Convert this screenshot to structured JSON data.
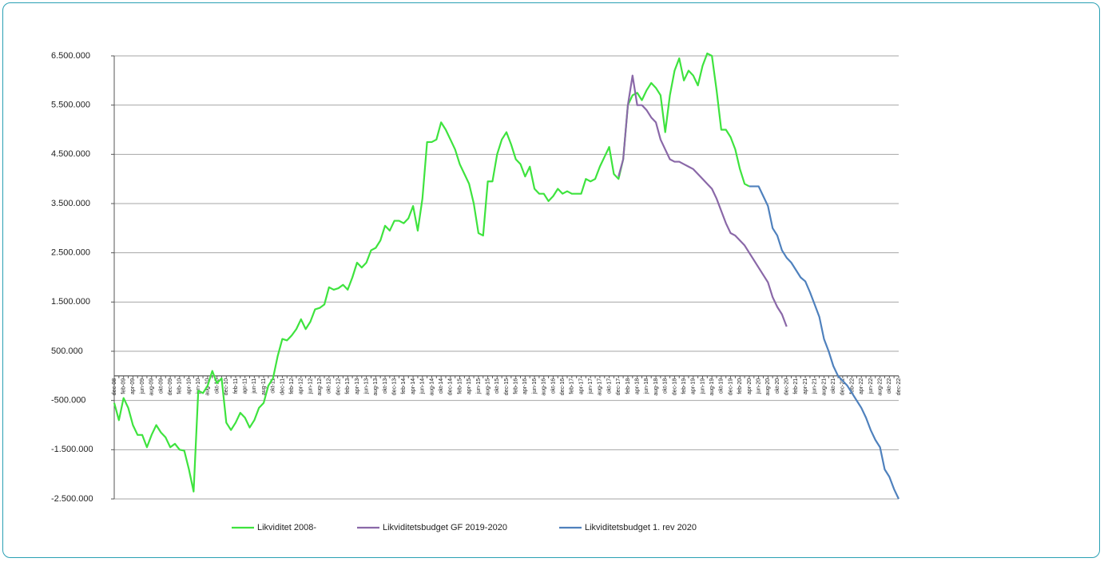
{
  "chart_data": {
    "type": "line",
    "categories": [
      "dec-08",
      null,
      "feb-09",
      null,
      "apr-09",
      null,
      "jun-09",
      null,
      "aug-09",
      null,
      "okt-09",
      null,
      "dec-09",
      null,
      "feb-10",
      null,
      "apr-10",
      null,
      "jun-10",
      null,
      "aug-10",
      null,
      "okt-10",
      null,
      "dec-10",
      null,
      "feb-11",
      null,
      "apr-11",
      null,
      "jun-11",
      null,
      "aug-11",
      null,
      "okt-11",
      null,
      "dec-11",
      null,
      "feb-12",
      null,
      "apr-12",
      null,
      "jun-12",
      null,
      "aug-12",
      null,
      "okt-12",
      null,
      "dec-12",
      null,
      "feb-13",
      null,
      "apr-13",
      null,
      "jun-13",
      null,
      "aug-13",
      null,
      "okt-13",
      null,
      "dec-13",
      null,
      "feb-14",
      null,
      "apr-14",
      null,
      "jun-14",
      null,
      "aug-14",
      null,
      "okt-14",
      null,
      "dec-14",
      null,
      "feb-15",
      null,
      "apr-15",
      null,
      "jun-15",
      null,
      "aug-15",
      null,
      "okt-15",
      null,
      "dec-15",
      null,
      "feb-16",
      null,
      "apr-16",
      null,
      "jun-16",
      null,
      "aug-16",
      null,
      "okt-16",
      null,
      "dec-16",
      null,
      "feb-17",
      null,
      "apr-17",
      null,
      "jun-17",
      null,
      "aug-17",
      null,
      "okt-17",
      null,
      "dec-17",
      null,
      "feb-18",
      null,
      "apr-18",
      null,
      "jun-18",
      null,
      "aug-18",
      null,
      "okt-18",
      null,
      "dec-18",
      null,
      "feb-19",
      null,
      "apr-19",
      null,
      "jun-19",
      null,
      "aug-19",
      null,
      "okt-19",
      null,
      "dec-19",
      null,
      "feb-20",
      null,
      "apr-20",
      null,
      "jun-20",
      null,
      "aug-20",
      null,
      "okt-20",
      null,
      "dec-20",
      null,
      "feb-21",
      null,
      "apr-21",
      null,
      "jun-21",
      null,
      "aug-21",
      null,
      "okt-21",
      null,
      "dec-21",
      null,
      "feb-22",
      null,
      "apr-22",
      null,
      "jun-22",
      null,
      "aug-22",
      null,
      "okt-22",
      null,
      "dec-22"
    ],
    "series": [
      {
        "name": "Likviditet 2008-",
        "color": "#3ee33e",
        "values": [
          -550000,
          -900000,
          -450000,
          -650000,
          -1000000,
          -1200000,
          -1200000,
          -1450000,
          -1200000,
          -1000000,
          -1150000,
          -1250000,
          -1450000,
          -1380000,
          -1500000,
          -1520000,
          -1900000,
          -2350000,
          -300000,
          -350000,
          -200000,
          100000,
          -150000,
          -50000,
          -950000,
          -1100000,
          -950000,
          -750000,
          -850000,
          -1050000,
          -900000,
          -650000,
          -550000,
          -200000,
          -50000,
          400000,
          750000,
          720000,
          820000,
          950000,
          1150000,
          950000,
          1100000,
          1350000,
          1380000,
          1450000,
          1800000,
          1750000,
          1780000,
          1850000,
          1750000,
          2000000,
          2300000,
          2200000,
          2300000,
          2550000,
          2600000,
          2750000,
          3050000,
          2950000,
          3150000,
          3150000,
          3100000,
          3200000,
          3450000,
          2950000,
          3600000,
          4750000,
          4750000,
          4800000,
          5150000,
          5000000,
          4800000,
          4600000,
          4300000,
          4100000,
          3900000,
          3500000,
          2900000,
          2850000,
          3950000,
          3950000,
          4500000,
          4800000,
          4950000,
          4700000,
          4400000,
          4300000,
          4050000,
          4250000,
          3800000,
          3700000,
          3700000,
          3550000,
          3650000,
          3800000,
          3700000,
          3750000,
          3700000,
          3700000,
          3700000,
          4000000,
          3950000,
          4000000,
          4250000,
          4450000,
          4650000,
          4100000,
          4000000,
          4400000,
          5500000,
          5700000,
          5750000,
          5600000,
          5800000,
          5950000,
          5850000,
          5700000,
          4950000,
          5700000,
          6200000,
          6450000,
          6000000,
          6200000,
          6100000,
          5900000,
          6300000,
          6550000,
          6500000,
          5800000,
          5000000,
          5000000,
          4850000,
          4600000,
          4200000,
          3900000,
          3850000,
          null,
          null,
          null,
          null,
          null,
          null,
          null,
          null,
          null,
          null,
          null,
          null,
          null,
          null,
          null,
          null,
          null,
          null,
          null,
          null,
          null,
          null,
          null,
          null,
          null,
          null,
          null,
          null,
          null,
          null,
          null,
          null
        ]
      },
      {
        "name": "Likviditetsbudget GF 2019-2020",
        "color": "#8a68a8",
        "values": [
          null,
          null,
          null,
          null,
          null,
          null,
          null,
          null,
          null,
          null,
          null,
          null,
          null,
          null,
          null,
          null,
          null,
          null,
          null,
          null,
          null,
          null,
          null,
          null,
          null,
          null,
          null,
          null,
          null,
          null,
          null,
          null,
          null,
          null,
          null,
          null,
          null,
          null,
          null,
          null,
          null,
          null,
          null,
          null,
          null,
          null,
          null,
          null,
          null,
          null,
          null,
          null,
          null,
          null,
          null,
          null,
          null,
          null,
          null,
          null,
          null,
          null,
          null,
          null,
          null,
          null,
          null,
          null,
          null,
          null,
          null,
          null,
          null,
          null,
          null,
          null,
          null,
          null,
          null,
          null,
          null,
          null,
          null,
          null,
          null,
          null,
          null,
          null,
          null,
          null,
          null,
          null,
          null,
          null,
          null,
          null,
          null,
          null,
          null,
          null,
          null,
          null,
          null,
          null,
          null,
          null,
          null,
          null,
          4050000,
          4400000,
          5500000,
          6100000,
          5500000,
          5500000,
          5400000,
          5250000,
          5150000,
          4800000,
          4600000,
          4400000,
          4350000,
          4350000,
          4300000,
          4250000,
          4200000,
          4100000,
          4000000,
          3900000,
          3800000,
          3600000,
          3350000,
          3100000,
          2900000,
          2850000,
          2750000,
          2650000,
          2500000,
          2350000,
          2200000,
          2050000,
          1900000,
          1600000,
          1400000,
          1250000,
          1000000,
          null,
          null,
          null,
          null,
          null,
          null,
          null,
          null,
          null,
          null,
          null,
          null,
          null,
          null,
          null,
          null,
          null,
          null,
          null,
          null,
          null,
          null,
          null,
          null
        ]
      },
      {
        "name": "Likviditetsbudget 1. rev 2020",
        "color": "#4f81bd",
        "values": [
          null,
          null,
          null,
          null,
          null,
          null,
          null,
          null,
          null,
          null,
          null,
          null,
          null,
          null,
          null,
          null,
          null,
          null,
          null,
          null,
          null,
          null,
          null,
          null,
          null,
          null,
          null,
          null,
          null,
          null,
          null,
          null,
          null,
          null,
          null,
          null,
          null,
          null,
          null,
          null,
          null,
          null,
          null,
          null,
          null,
          null,
          null,
          null,
          null,
          null,
          null,
          null,
          null,
          null,
          null,
          null,
          null,
          null,
          null,
          null,
          null,
          null,
          null,
          null,
          null,
          null,
          null,
          null,
          null,
          null,
          null,
          null,
          null,
          null,
          null,
          null,
          null,
          null,
          null,
          null,
          null,
          null,
          null,
          null,
          null,
          null,
          null,
          null,
          null,
          null,
          null,
          null,
          null,
          null,
          null,
          null,
          null,
          null,
          null,
          null,
          null,
          null,
          null,
          null,
          null,
          null,
          null,
          null,
          null,
          null,
          null,
          null,
          null,
          null,
          null,
          null,
          null,
          null,
          null,
          null,
          null,
          null,
          null,
          null,
          null,
          null,
          null,
          null,
          null,
          null,
          null,
          null,
          null,
          null,
          null,
          null,
          3850000,
          3850000,
          3850000,
          3650000,
          3450000,
          3000000,
          2850000,
          2550000,
          2400000,
          2300000,
          2150000,
          2000000,
          1920000,
          1700000,
          1450000,
          1200000,
          750000,
          500000,
          200000,
          0,
          -100000,
          -200000,
          -350000,
          -500000,
          -650000,
          -850000,
          -1100000,
          -1300000,
          -1450000,
          -1900000,
          -2050000,
          -2300000,
          -2500000
        ]
      }
    ],
    "ylim": [
      -2500000,
      6500000
    ],
    "yticks": [
      {
        "value": 6500000,
        "label": "6.500.000"
      },
      {
        "value": 5500000,
        "label": "5.500.000"
      },
      {
        "value": 4500000,
        "label": "4.500.000"
      },
      {
        "value": 3500000,
        "label": "3.500.000"
      },
      {
        "value": 2500000,
        "label": "2.500.000"
      },
      {
        "value": 1500000,
        "label": "1.500.000"
      },
      {
        "value": 500000,
        "label": "500.000"
      },
      {
        "value": -500000,
        "label": "-500.000"
      },
      {
        "value": -1500000,
        "label": "-1.500.000"
      },
      {
        "value": -2500000,
        "label": "-2.500.000"
      }
    ],
    "grid": true,
    "legend": "bottom"
  }
}
